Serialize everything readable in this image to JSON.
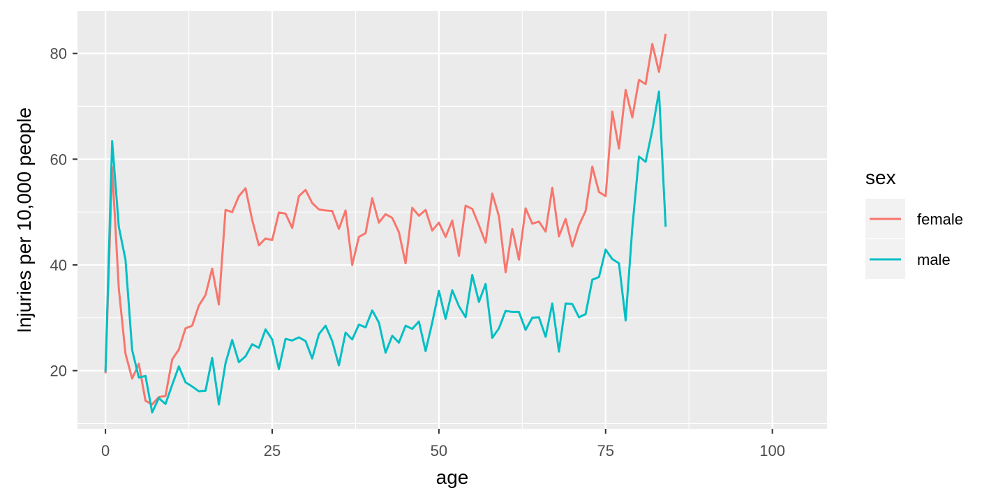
{
  "chart_data": {
    "type": "line",
    "xlabel": "age",
    "ylabel": "Injuries per 10,000 people",
    "xlim": [
      -4.2,
      108.2
    ],
    "ylim": [
      9,
      88
    ],
    "x_ticks": [
      0,
      25,
      50,
      75,
      100
    ],
    "y_ticks": [
      20,
      40,
      60,
      80
    ],
    "grid": true,
    "legend": {
      "title": "sex",
      "placement": "right"
    },
    "x": [
      0,
      1,
      2,
      3,
      4,
      5,
      6,
      7,
      8,
      9,
      10,
      11,
      12,
      13,
      14,
      15,
      16,
      17,
      18,
      19,
      20,
      21,
      22,
      23,
      24,
      25,
      26,
      27,
      28,
      29,
      30,
      31,
      32,
      33,
      34,
      35,
      36,
      37,
      38,
      39,
      40,
      41,
      42,
      43,
      44,
      45,
      46,
      47,
      48,
      49,
      50,
      51,
      52,
      53,
      54,
      55,
      56,
      57,
      58,
      59,
      60,
      61,
      62,
      63,
      64,
      65,
      66,
      67,
      68,
      69,
      70,
      71,
      72,
      73,
      74,
      75,
      76,
      77,
      78,
      79,
      80,
      81,
      82,
      83,
      84
    ],
    "series": [
      {
        "name": "female",
        "color": "#F8766D",
        "values": [
          19.5,
          58.5,
          35.5,
          23.2,
          18.5,
          21.3,
          14.3,
          13.6,
          15.0,
          15.2,
          22.1,
          24.0,
          28.0,
          28.5,
          32.3,
          34.3,
          39.3,
          32.5,
          50.4,
          50.0,
          53.0,
          54.5,
          48.5,
          43.7,
          45.0,
          44.7,
          49.9,
          49.7,
          47.0,
          53.0,
          54.2,
          51.7,
          50.5,
          50.3,
          50.2,
          46.8,
          50.3,
          40.0,
          45.3,
          46.0,
          52.6,
          48.0,
          49.6,
          48.9,
          46.2,
          40.3,
          50.8,
          49.3,
          50.4,
          46.5,
          48.0,
          45.3,
          48.4,
          41.7,
          51.2,
          50.6,
          47.5,
          44.2,
          53.5,
          49.2,
          38.6,
          46.8,
          41.0,
          50.7,
          47.8,
          48.2,
          46.3,
          54.6,
          45.4,
          48.7,
          43.5,
          47.5,
          50.2,
          58.6,
          53.8,
          53.0,
          69.0,
          62.0,
          73.1,
          67.9,
          75.0,
          74.2,
          81.8,
          76.5,
          83.7
        ]
      },
      {
        "name": "male",
        "color": "#00BFC4",
        "values": [
          19.8,
          63.4,
          47.2,
          41.0,
          23.9,
          18.7,
          19.0,
          12.1,
          14.8,
          13.7,
          17.3,
          20.8,
          17.8,
          17.0,
          16.1,
          16.2,
          22.4,
          13.6,
          21.4,
          25.8,
          21.6,
          22.7,
          25.0,
          24.3,
          27.8,
          25.9,
          20.3,
          26.0,
          25.7,
          26.3,
          25.6,
          22.3,
          26.9,
          28.5,
          25.6,
          21.0,
          27.2,
          25.9,
          28.7,
          28.2,
          31.4,
          29.1,
          23.4,
          26.6,
          25.3,
          28.5,
          27.9,
          29.3,
          23.7,
          29.1,
          35.1,
          29.8,
          35.2,
          32.2,
          30.1,
          38.1,
          33.0,
          36.4,
          26.2,
          28.0,
          31.3,
          31.1,
          31.1,
          27.7,
          30.0,
          30.1,
          26.4,
          32.7,
          23.6,
          32.7,
          32.6,
          30.1,
          30.7,
          37.2,
          37.7,
          42.9,
          41.1,
          40.3,
          29.5,
          47.0,
          60.5,
          59.5,
          65.5,
          72.8,
          47.2
        ]
      }
    ]
  }
}
